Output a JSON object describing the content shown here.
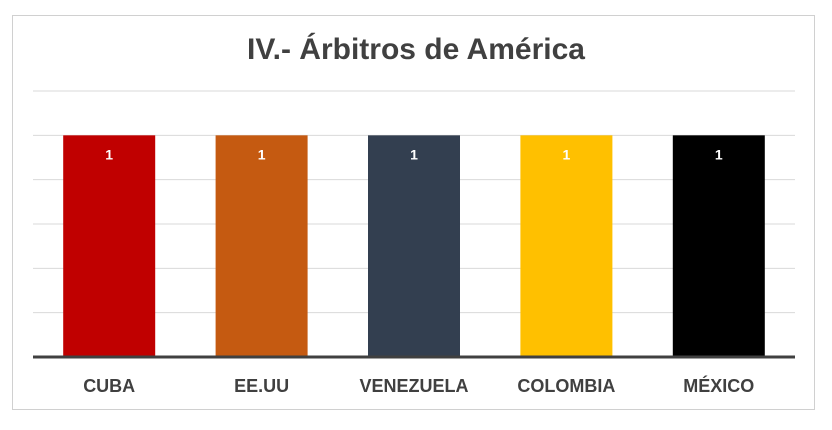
{
  "chart_data": {
    "type": "bar",
    "title": "IV.- Árbitros de América",
    "categories": [
      "CUBA",
      "EE.UU",
      "VENEZUELA",
      "COLOMBIA",
      "MÉXICO"
    ],
    "values": [
      1,
      1,
      1,
      1,
      1
    ],
    "data_labels": [
      "1",
      "1",
      "1",
      "1",
      "1"
    ],
    "bar_colors": [
      "#c00000",
      "#c55a11",
      "#333f50",
      "#ffc000",
      "#000000"
    ],
    "xlabel": "",
    "ylabel": "",
    "ylim": [
      0,
      1.2
    ],
    "y_gridlines": [
      0.2,
      0.4,
      0.6,
      0.8,
      1.0,
      1.2
    ],
    "y_tick_labels_shown": false,
    "grid": true,
    "legend": "none"
  }
}
